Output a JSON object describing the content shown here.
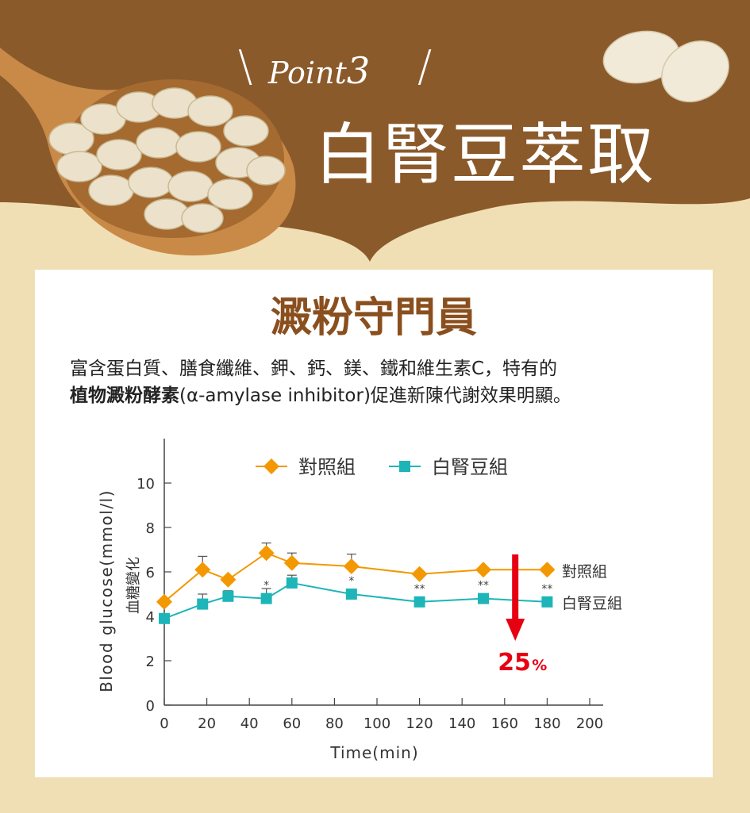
{
  "header": {
    "point_label": "Point",
    "point_number": "3",
    "title": "白腎豆萃取"
  },
  "card": {
    "subtitle": "澱粉守門員",
    "description_line1": "富含蛋白質、膳食纖維、鉀、鈣、鎂、鐵和維生素C，特有的",
    "description_bold": "植物澱粉酵素",
    "description_line2": "(α-amylase inhibitor)促進新陳代謝效果明顯。"
  },
  "colors": {
    "brown": "#8b5a2b",
    "cream": "#f0dfb4",
    "control": "#f39800",
    "bean": "#1db5b8",
    "arrow": "#e60012"
  },
  "chart_data": {
    "type": "line",
    "xlabel": "Time(min)",
    "ylabel": "Blood glucose(mmol/l)",
    "ylabel_zh": "血糖變化",
    "xlim": [
      0,
      200
    ],
    "ylim": [
      0,
      10
    ],
    "xticks": [
      "0",
      "20",
      "40",
      "60",
      "80",
      "100",
      "120",
      "140",
      "160",
      "180",
      "200"
    ],
    "yticks": [
      "0",
      "2",
      "4",
      "6",
      "8",
      "10"
    ],
    "legend_position": "top",
    "x": [
      0,
      18,
      30,
      48,
      60,
      88,
      120,
      150,
      180
    ],
    "series": [
      {
        "name": "對照組",
        "marker": "diamond",
        "color": "#f39800",
        "values": [
          4.65,
          6.1,
          5.65,
          6.85,
          6.4,
          6.25,
          5.9,
          6.1,
          6.1
        ],
        "error_upper": [
          null,
          6.7,
          null,
          7.3,
          6.85,
          6.8,
          null,
          null,
          null
        ]
      },
      {
        "name": "白腎豆組",
        "marker": "square",
        "color": "#1db5b8",
        "values": [
          3.9,
          4.55,
          4.9,
          4.8,
          5.5,
          5.0,
          4.65,
          4.8,
          4.65
        ],
        "error_upper": [
          null,
          5.0,
          5.15,
          5.25,
          5.85,
          null,
          null,
          null,
          null
        ]
      }
    ],
    "significance": [
      {
        "x": 48,
        "label": "*"
      },
      {
        "x": 88,
        "label": "*"
      },
      {
        "x": 120,
        "label": "**"
      },
      {
        "x": 150,
        "label": "**"
      },
      {
        "x": 180,
        "label": "**"
      }
    ],
    "end_labels": [
      "對照組",
      "白腎豆組"
    ],
    "annotation": {
      "value": "25",
      "unit": "%",
      "x": 165
    }
  }
}
